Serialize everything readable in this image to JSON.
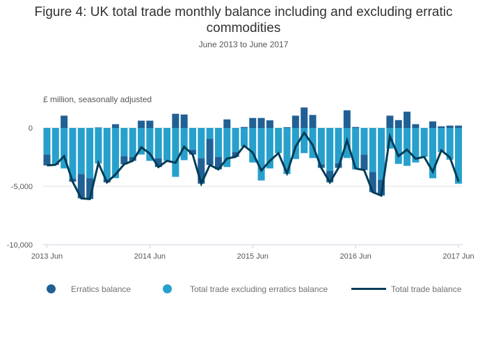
{
  "chart_data": {
    "type": "bar",
    "title": "Figure 4: UK total trade monthly balance including and excluding erratic commodities",
    "subtitle": "June 2013 to June 2017",
    "ylabel": "£ million, seasonally adjusted",
    "ylim": [
      -10000,
      1800
    ],
    "yticks": [
      {
        "value": 0,
        "label": "0"
      },
      {
        "value": -5000,
        "label": "-5,000"
      },
      {
        "value": -10000,
        "label": "-10,000"
      }
    ],
    "xticks": [
      {
        "index": 0,
        "label": "2013 Jun"
      },
      {
        "index": 12,
        "label": "2014 Jun"
      },
      {
        "index": 24,
        "label": "2015 Jun"
      },
      {
        "index": 36,
        "label": "2016 Jun"
      },
      {
        "index": 48,
        "label": "2017 Jun"
      }
    ],
    "n_months": 49,
    "grid": true,
    "legend_position": "bottom",
    "series": [
      {
        "name": "Erratics balance",
        "kind": "bar",
        "color": "#206095",
        "values": [
          -930,
          -80,
          1050,
          -260,
          -2080,
          -1790,
          40,
          -240,
          320,
          -690,
          -340,
          620,
          620,
          -750,
          0,
          1210,
          1150,
          -400,
          -2180,
          -2240,
          -1070,
          730,
          -420,
          80,
          850,
          850,
          650,
          0,
          60,
          1050,
          1750,
          1110,
          -300,
          -990,
          -400,
          1510,
          80,
          -1330,
          -1730,
          -1350,
          1050,
          670,
          1390,
          320,
          0,
          560,
          140,
          200,
          200
        ]
      },
      {
        "name": "Total trade excluding erratics balance",
        "kind": "bar",
        "color": "#27a0cc",
        "values": [
          -2280,
          -3080,
          -3470,
          -4350,
          -3950,
          -4300,
          -3050,
          -4420,
          -4300,
          -2420,
          -2480,
          -2280,
          -2820,
          -2600,
          -2820,
          -4190,
          -2760,
          -1880,
          -2600,
          -930,
          -2480,
          -3350,
          -2060,
          -1610,
          -2960,
          -4500,
          -3470,
          -2160,
          -3950,
          -2660,
          -2160,
          -2580,
          -3120,
          -3670,
          -3020,
          -2580,
          -3550,
          -2280,
          -3770,
          -4440,
          -1770,
          -3080,
          -3250,
          -2960,
          -2480,
          -4310,
          -2060,
          -2720,
          -4780
        ]
      },
      {
        "name": "Total trade balance",
        "kind": "line",
        "color": "#003c57",
        "values": [
          -3210,
          -3160,
          -2420,
          -4610,
          -6030,
          -6090,
          -3010,
          -4660,
          -3980,
          -3110,
          -2820,
          -1660,
          -2200,
          -3350,
          -2820,
          -2980,
          -1610,
          -2280,
          -4780,
          -3170,
          -3550,
          -2620,
          -2480,
          -1530,
          -2110,
          -3650,
          -2820,
          -2160,
          -3890,
          -1610,
          -410,
          -1470,
          -3420,
          -4660,
          -3420,
          -1070,
          -3470,
          -3610,
          -5500,
          -5790,
          -720,
          -2410,
          -1860,
          -2640,
          -2480,
          -3750,
          -1920,
          -2520,
          -4580
        ]
      }
    ]
  }
}
